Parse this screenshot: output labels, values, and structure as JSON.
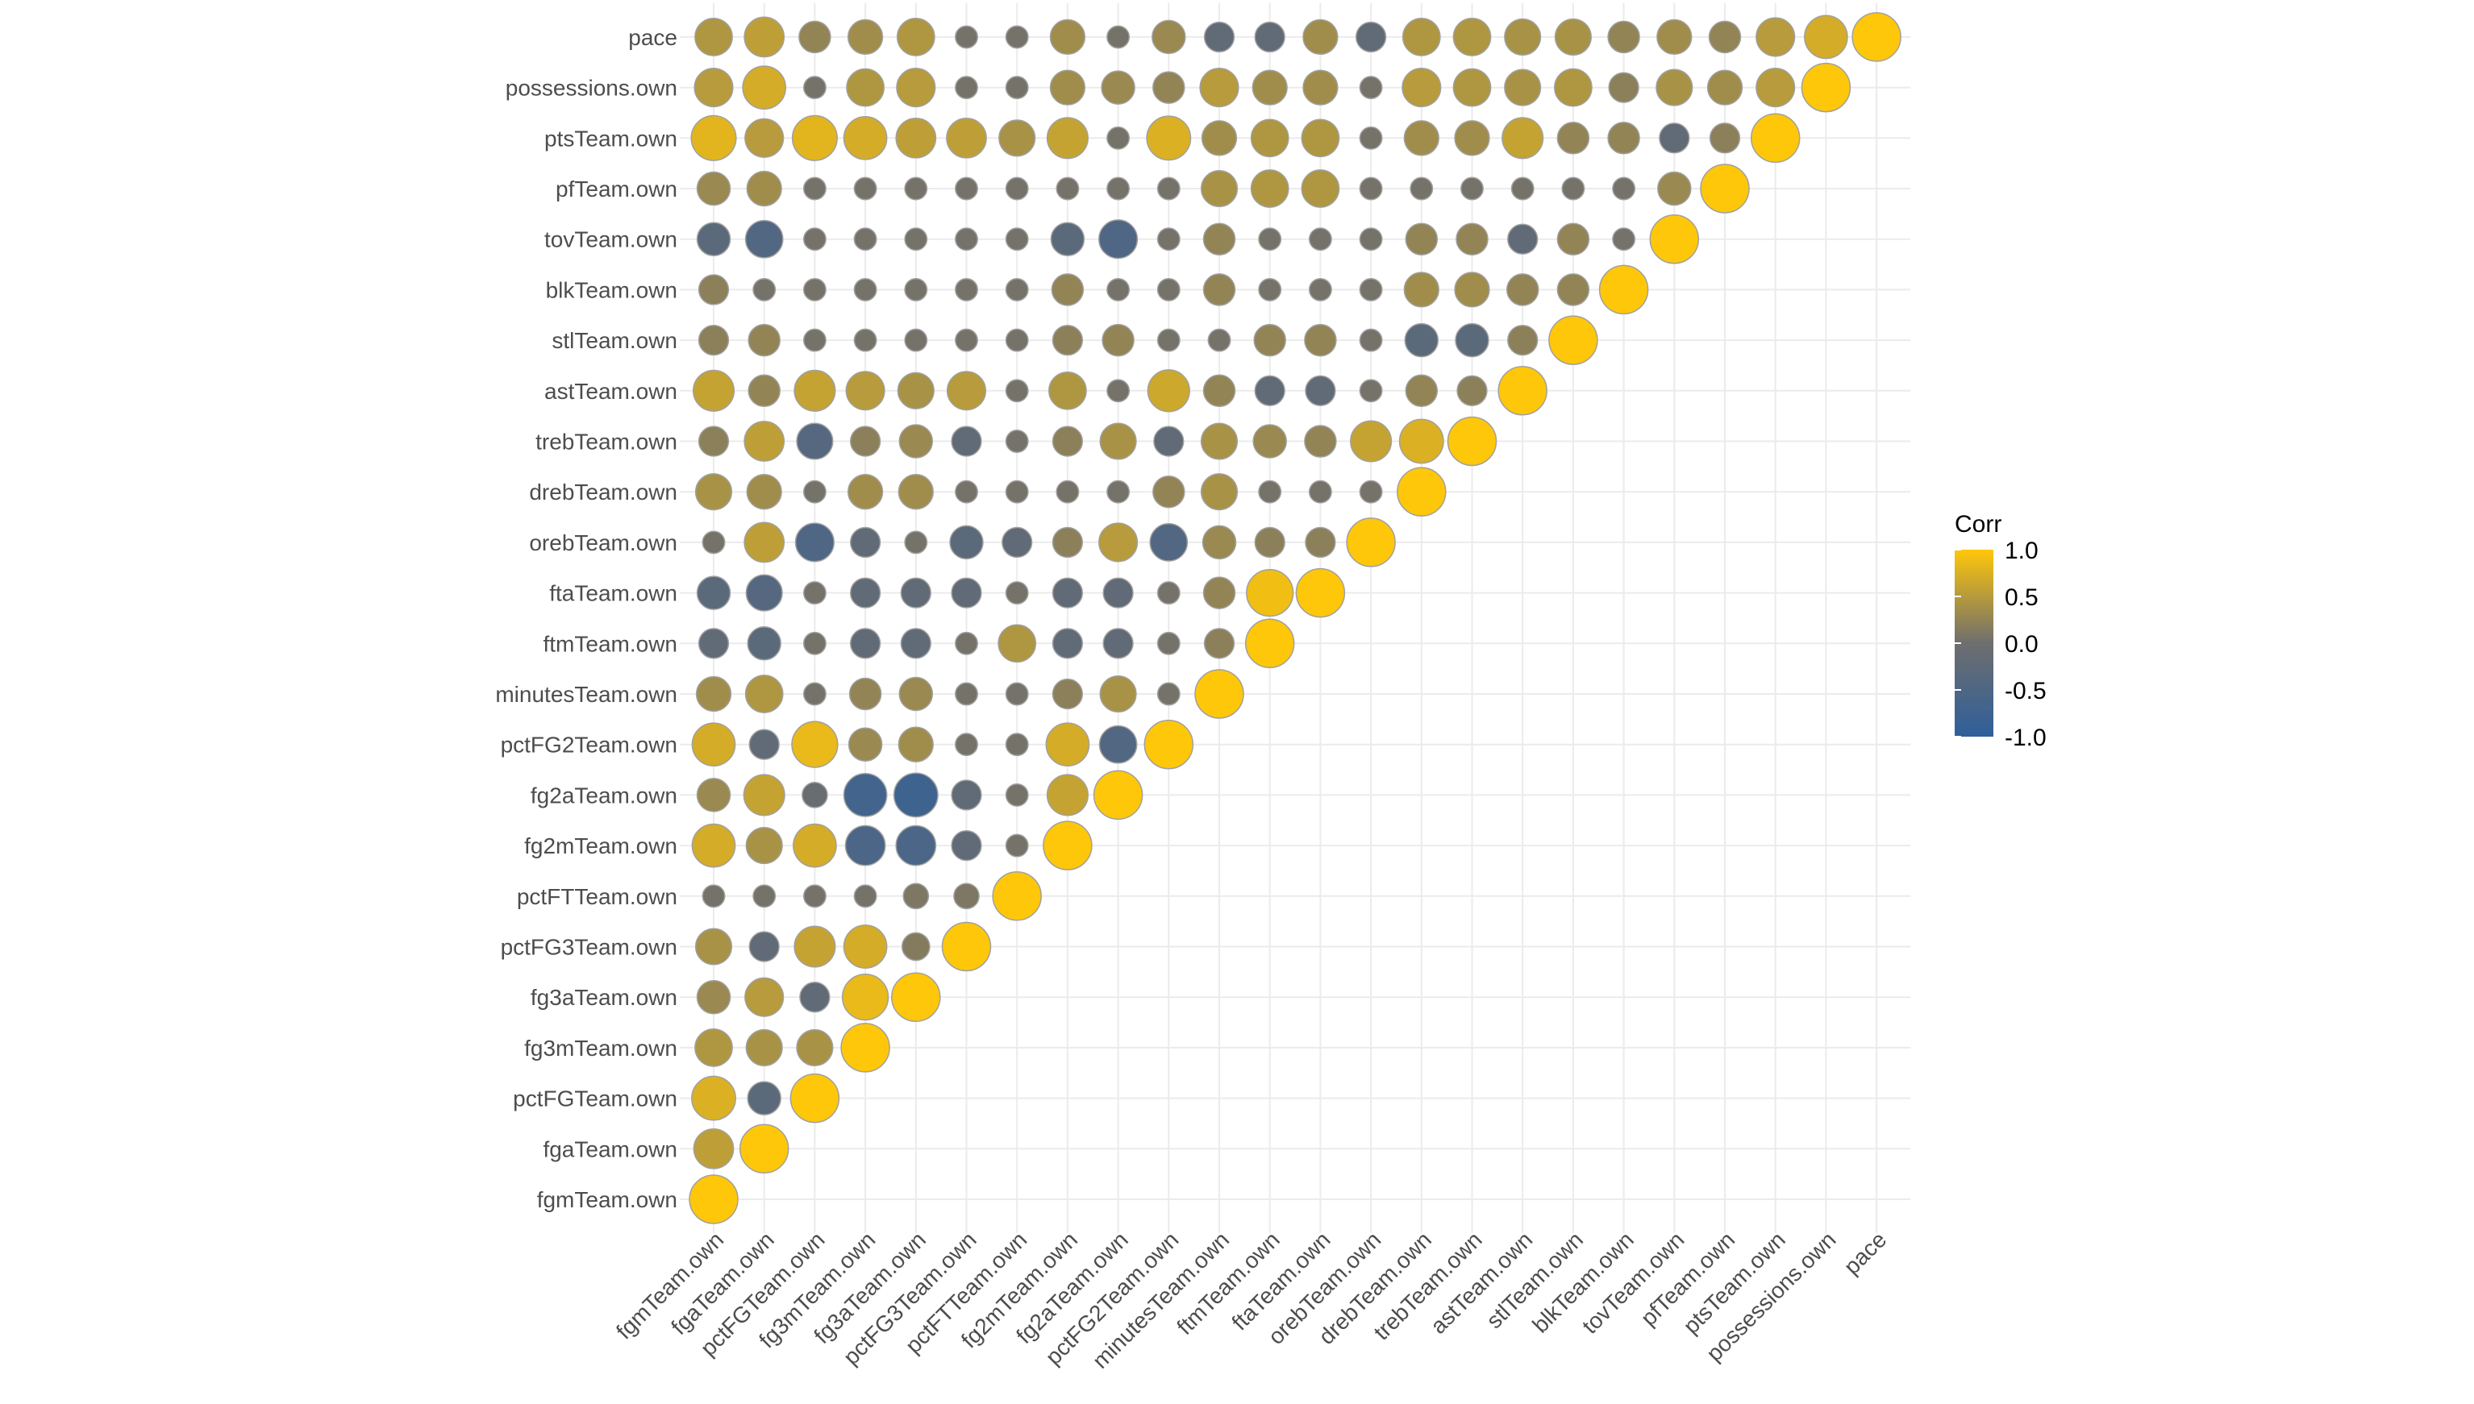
{
  "chart_data": {
    "type": "correlogram",
    "variables": [
      "fgmTeam.own",
      "fgaTeam.own",
      "pctFGTeam.own",
      "fg3mTeam.own",
      "fg3aTeam.own",
      "pctFG3Team.own",
      "pctFTTeam.own",
      "fg2mTeam.own",
      "fg2aTeam.own",
      "pctFG2Team.own",
      "minutesTeam.own",
      "ftmTeam.own",
      "ftaTeam.own",
      "orebTeam.own",
      "drebTeam.own",
      "trebTeam.own",
      "astTeam.own",
      "stlTeam.own",
      "blkTeam.own",
      "tovTeam.own",
      "pfTeam.own",
      "ptsTeam.own",
      "possessions.own",
      "pace"
    ],
    "correlations": [
      [
        1.0
      ],
      [
        0.55,
        1.0
      ],
      [
        0.75,
        -0.3,
        1.0
      ],
      [
        0.45,
        0.4,
        0.4,
        1.0
      ],
      [
        0.3,
        0.5,
        -0.2,
        0.85,
        1.0
      ],
      [
        0.4,
        -0.2,
        0.6,
        0.7,
        0.15,
        1.0
      ],
      [
        0.05,
        0.05,
        0.05,
        0.05,
        0.1,
        0.1,
        1.0
      ],
      [
        0.7,
        0.4,
        0.7,
        -0.55,
        -0.55,
        -0.2,
        0.05,
        1.0
      ],
      [
        0.3,
        0.6,
        -0.1,
        -0.7,
        -0.75,
        -0.2,
        0.05,
        0.6,
        1.0
      ],
      [
        0.7,
        -0.2,
        0.85,
        0.3,
        0.35,
        0.05,
        0.05,
        0.7,
        -0.45,
        1.0
      ],
      [
        0.35,
        0.45,
        0.05,
        0.25,
        0.3,
        0.05,
        0.05,
        0.2,
        0.4,
        0.05,
        1.0
      ],
      [
        -0.2,
        -0.3,
        0.05,
        -0.2,
        -0.2,
        0.05,
        0.45,
        -0.2,
        -0.2,
        0.05,
        0.2,
        1.0
      ],
      [
        -0.3,
        -0.4,
        0.05,
        -0.2,
        -0.2,
        -0.2,
        0.05,
        -0.2,
        -0.2,
        0.05,
        0.25,
        0.9,
        1.0
      ],
      [
        0.05,
        0.55,
        -0.5,
        -0.2,
        0.05,
        -0.3,
        -0.2,
        0.2,
        0.5,
        -0.45,
        0.3,
        0.2,
        0.2,
        1.0
      ],
      [
        0.4,
        0.35,
        0.05,
        0.35,
        0.35,
        0.05,
        0.05,
        0.05,
        0.05,
        0.25,
        0.4,
        0.05,
        0.05,
        0.05,
        1.0
      ],
      [
        0.2,
        0.55,
        -0.4,
        0.2,
        0.3,
        -0.2,
        0.05,
        0.2,
        0.4,
        -0.2,
        0.4,
        0.3,
        0.25,
        0.6,
        0.75,
        1.0
      ],
      [
        0.6,
        0.25,
        0.6,
        0.5,
        0.4,
        0.5,
        0.05,
        0.45,
        0.05,
        0.65,
        0.25,
        -0.2,
        -0.2,
        0.05,
        0.25,
        0.2,
        1.0
      ],
      [
        0.2,
        0.25,
        0.05,
        0.05,
        0.05,
        0.05,
        0.05,
        0.2,
        0.25,
        0.05,
        0.05,
        0.25,
        0.25,
        0.05,
        -0.3,
        -0.3,
        0.2,
        1.0
      ],
      [
        0.2,
        0.05,
        0.05,
        0.05,
        0.05,
        0.05,
        0.05,
        0.25,
        0.05,
        0.05,
        0.25,
        0.05,
        0.05,
        0.05,
        0.35,
        0.35,
        0.25,
        0.25,
        1.0
      ],
      [
        -0.3,
        -0.45,
        0.05,
        0.05,
        0.05,
        0.05,
        0.05,
        -0.3,
        -0.5,
        0.05,
        0.25,
        0.05,
        0.05,
        0.05,
        0.25,
        0.25,
        -0.2,
        0.25,
        0.05,
        1.0
      ],
      [
        0.3,
        0.35,
        0.05,
        0.05,
        0.05,
        0.05,
        0.05,
        0.05,
        0.05,
        0.05,
        0.4,
        0.45,
        0.45,
        0.05,
        0.05,
        0.05,
        0.05,
        0.05,
        0.05,
        0.3,
        1.0
      ],
      [
        0.8,
        0.5,
        0.8,
        0.7,
        0.55,
        0.55,
        0.4,
        0.6,
        0.05,
        0.75,
        0.35,
        0.45,
        0.45,
        0.05,
        0.35,
        0.35,
        0.6,
        0.25,
        0.25,
        -0.2,
        0.2,
        1.0
      ],
      [
        0.5,
        0.7,
        0.05,
        0.45,
        0.5,
        0.05,
        0.05,
        0.35,
        0.3,
        0.25,
        0.5,
        0.35,
        0.35,
        0.05,
        0.5,
        0.45,
        0.4,
        0.45,
        0.2,
        0.4,
        0.35,
        0.5,
        1.0
      ],
      [
        0.45,
        0.55,
        0.25,
        0.35,
        0.45,
        0.05,
        0.05,
        0.35,
        0.05,
        0.3,
        -0.2,
        -0.2,
        0.35,
        -0.2,
        0.45,
        0.45,
        0.4,
        0.4,
        0.25,
        0.35,
        0.25,
        0.5,
        0.7,
        1.0
      ]
    ],
    "legend": {
      "title": "Corr",
      "labels": [
        "1.0",
        "0.5",
        "0.0",
        "-0.5",
        "-1.0"
      ],
      "placement": "right"
    },
    "colors": {
      "high": "#ffc70a",
      "mid": "#6e6e6e",
      "low": "#2f5f9a",
      "grid": "#ebebeb",
      "circle_stroke": "#a0a0a0",
      "tick_text": "#4d4d4d"
    },
    "grid": true
  }
}
